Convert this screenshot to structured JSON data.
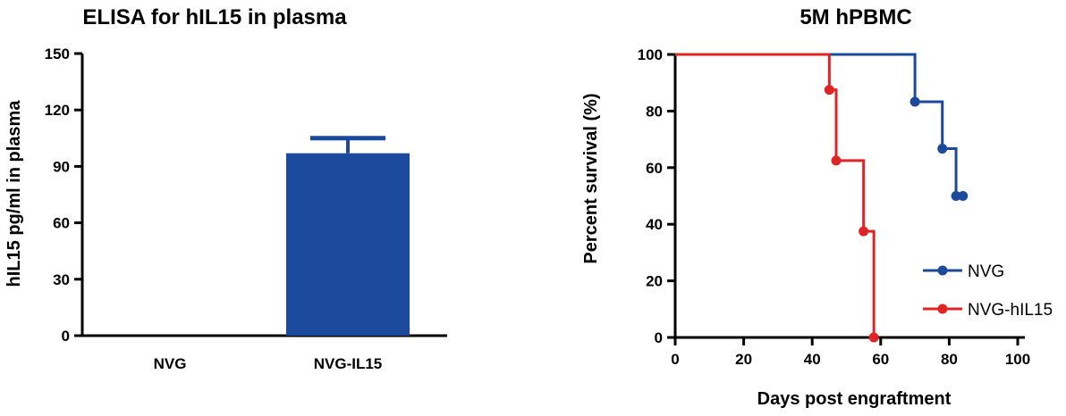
{
  "chart_data": [
    {
      "type": "bar",
      "title": "ELISA for hIL15 in plasma",
      "xlabel": "",
      "ylabel": "hIL15 pg/ml in plasma",
      "categories": [
        "NVG",
        "NVG-IL15"
      ],
      "values": [
        0,
        97
      ],
      "error": [
        0,
        8
      ],
      "ylim": [
        0,
        150
      ],
      "yticks": [
        0,
        30,
        60,
        90,
        120,
        150
      ],
      "color": "#1b4a9c"
    },
    {
      "type": "line",
      "subtype": "kaplan-meier",
      "title": "5M hPBMC",
      "xlabel": "Days post engraftment",
      "ylabel": "Percent survival (%)",
      "xlim": [
        0,
        100
      ],
      "ylim": [
        0,
        100
      ],
      "xticks": [
        0,
        20,
        40,
        60,
        80,
        100
      ],
      "yticks": [
        0,
        20,
        40,
        60,
        80,
        100
      ],
      "legend_position": "right",
      "series": [
        {
          "name": "NVG",
          "color": "#1b4a9c",
          "steps": [
            [
              0,
              100
            ],
            [
              70,
              83.3
            ],
            [
              78,
              66.7
            ],
            [
              82,
              50
            ]
          ],
          "end_x": 84,
          "markers": [
            [
              70,
              83.3
            ],
            [
              78,
              66.7
            ],
            [
              82,
              50
            ],
            [
              84,
              50
            ]
          ]
        },
        {
          "name": "NVG-hIL15",
          "color": "#e02424",
          "steps": [
            [
              0,
              100
            ],
            [
              45,
              87.5
            ],
            [
              47,
              62.5
            ],
            [
              55,
              37.5
            ],
            [
              58,
              0
            ]
          ],
          "end_x": 58,
          "markers": [
            [
              45,
              87.5
            ],
            [
              47,
              62.5
            ],
            [
              55,
              37.5
            ],
            [
              58,
              0
            ]
          ]
        }
      ]
    }
  ]
}
